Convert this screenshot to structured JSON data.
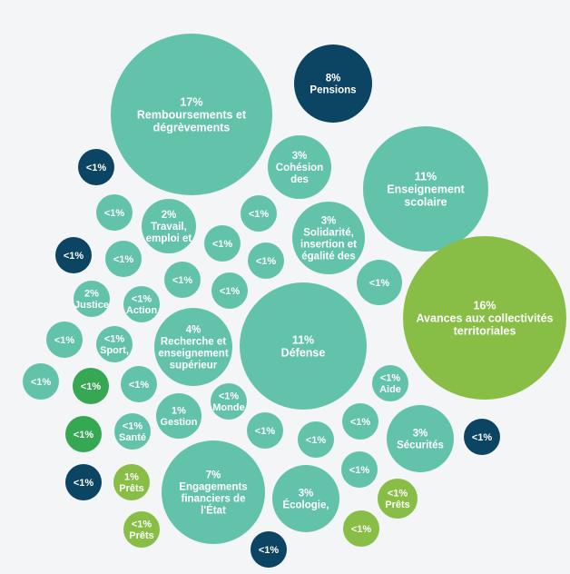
{
  "colors": {
    "background": "#f3f5f6",
    "teal": "#63c3aa",
    "navy": "#0c4563",
    "lime": "#88be45",
    "green": "#36a853",
    "text": "#ffffff"
  },
  "chart_data": {
    "type": "bubble",
    "title": "",
    "bubbles": [
      {
        "pct": "17%",
        "label": [
          "Remboursements et",
          "dégrèvements"
        ],
        "value": 17,
        "color": "teal"
      },
      {
        "pct": "8%",
        "label": [
          "Pensions"
        ],
        "value": 8,
        "color": "navy"
      },
      {
        "pct": "<1%",
        "label": [],
        "value": 0.5,
        "color": "navy"
      },
      {
        "pct": "3%",
        "label": [
          "Cohésion",
          "des"
        ],
        "value": 3,
        "color": "teal"
      },
      {
        "pct": "11%",
        "label": [
          "Enseignement",
          "scolaire"
        ],
        "value": 11,
        "color": "teal"
      },
      {
        "pct": "<1%",
        "label": [],
        "value": 0.5,
        "color": "teal"
      },
      {
        "pct": "2%",
        "label": [
          "Travail,",
          "emploi et"
        ],
        "value": 2,
        "color": "teal"
      },
      {
        "pct": "<1%",
        "label": [],
        "value": 0.5,
        "color": "teal"
      },
      {
        "pct": "<1%",
        "label": [],
        "value": 0.5,
        "color": "teal"
      },
      {
        "pct": "3%",
        "label": [
          "Solidarité,",
          "insertion et",
          "égalité des"
        ],
        "value": 3,
        "color": "teal"
      },
      {
        "pct": "<1%",
        "label": [],
        "value": 0.5,
        "color": "navy"
      },
      {
        "pct": "<1%",
        "label": [],
        "value": 0.5,
        "color": "teal"
      },
      {
        "pct": "<1%",
        "label": [],
        "value": 0.5,
        "color": "teal"
      },
      {
        "pct": "16%",
        "label": [
          "Avances aux collectivités",
          "territoriales"
        ],
        "value": 16,
        "color": "lime"
      },
      {
        "pct": "<1%",
        "label": [],
        "value": 0.5,
        "color": "teal"
      },
      {
        "pct": "2%",
        "label": [
          "Justice"
        ],
        "value": 2,
        "color": "teal"
      },
      {
        "pct": "<1%",
        "label": [],
        "value": 0.5,
        "color": "teal"
      },
      {
        "pct": "<1%",
        "label": [],
        "value": 0.5,
        "color": "teal"
      },
      {
        "pct": "<1%",
        "label": [
          "Action"
        ],
        "value": 0.5,
        "color": "teal"
      },
      {
        "pct": "11%",
        "label": [
          "Défense"
        ],
        "value": 11,
        "color": "teal"
      },
      {
        "pct": "<1%",
        "label": [],
        "value": 0.5,
        "color": "teal"
      },
      {
        "pct": "<1%",
        "label": [
          "Sport,"
        ],
        "value": 0.5,
        "color": "teal"
      },
      {
        "pct": "4%",
        "label": [
          "Recherche et",
          "enseignement",
          "supérieur"
        ],
        "value": 4,
        "color": "teal"
      },
      {
        "pct": "<1%",
        "label": [],
        "value": 0.5,
        "color": "teal"
      },
      {
        "pct": "<1%",
        "label": [],
        "value": 0.5,
        "color": "green"
      },
      {
        "pct": "<1%",
        "label": [],
        "value": 0.5,
        "color": "teal"
      },
      {
        "pct": "<1%",
        "label": [
          "Aide"
        ],
        "value": 0.5,
        "color": "teal"
      },
      {
        "pct": "<1%",
        "label": [
          "Monde"
        ],
        "value": 0.5,
        "color": "teal"
      },
      {
        "pct": "1%",
        "label": [
          "Gestion"
        ],
        "value": 1,
        "color": "teal"
      },
      {
        "pct": "<1%",
        "label": [],
        "value": 0.5,
        "color": "green"
      },
      {
        "pct": "<1%",
        "label": [
          "Santé"
        ],
        "value": 0.5,
        "color": "teal"
      },
      {
        "pct": "<1%",
        "label": [],
        "value": 0.5,
        "color": "teal"
      },
      {
        "pct": "<1%",
        "label": [],
        "value": 0.5,
        "color": "teal"
      },
      {
        "pct": "<1%",
        "label": [],
        "value": 0.5,
        "color": "teal"
      },
      {
        "pct": "3%",
        "label": [
          "Sécurités"
        ],
        "value": 3,
        "color": "teal"
      },
      {
        "pct": "<1%",
        "label": [],
        "value": 0.5,
        "color": "navy"
      },
      {
        "pct": "<1%",
        "label": [],
        "value": 0.5,
        "color": "navy"
      },
      {
        "pct": "1%",
        "label": [
          "Prêts"
        ],
        "value": 1,
        "color": "lime"
      },
      {
        "pct": "7%",
        "label": [
          "Engagements",
          "financiers de",
          "l'État"
        ],
        "value": 7,
        "color": "teal"
      },
      {
        "pct": "<1%",
        "label": [],
        "value": 0.5,
        "color": "teal"
      },
      {
        "pct": "3%",
        "label": [
          "Écologie,"
        ],
        "value": 3,
        "color": "teal"
      },
      {
        "pct": "<1%",
        "label": [
          "Prêts"
        ],
        "value": 0.5,
        "color": "lime"
      },
      {
        "pct": "<1%",
        "label": [
          "Prêts"
        ],
        "value": 0.5,
        "color": "lime"
      },
      {
        "pct": "<1%",
        "label": [],
        "value": 0.5,
        "color": "lime"
      },
      {
        "pct": "<1%",
        "label": [],
        "value": 0.5,
        "color": "navy"
      }
    ]
  }
}
